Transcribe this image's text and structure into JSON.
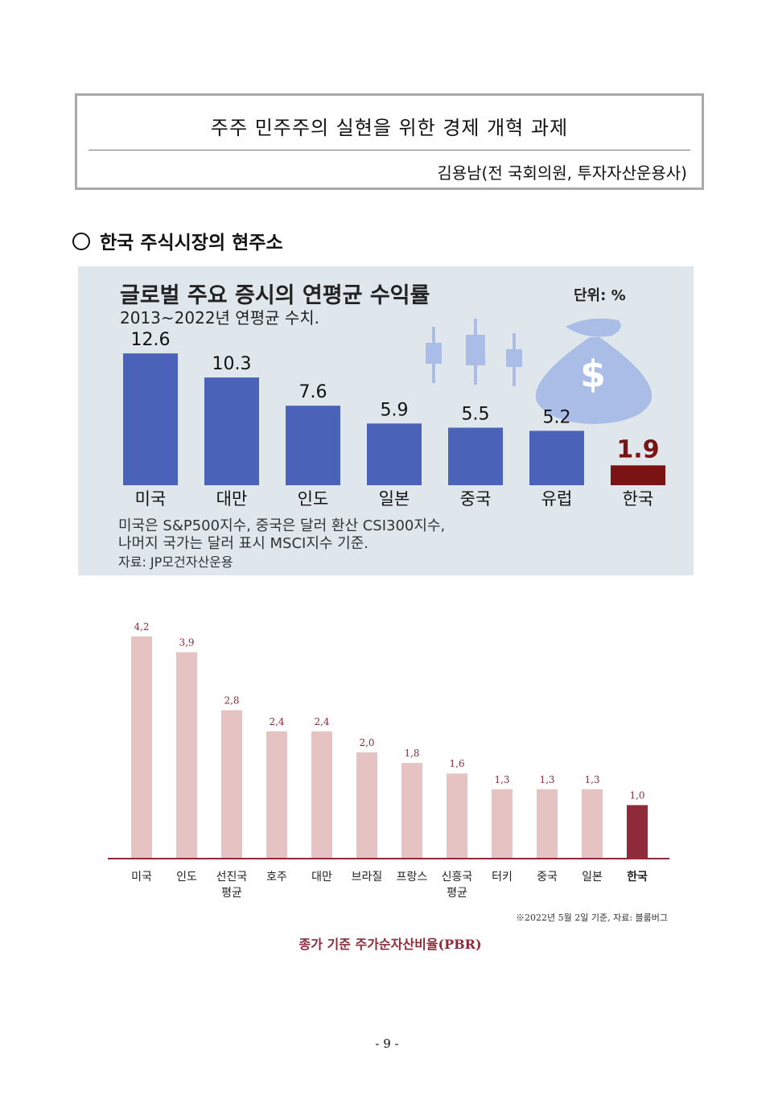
{
  "header": {
    "title": "주주 민주주의 실현을 위한 경제 개혁 과제",
    "author": "김용남(전 국회의원, 투자자산운용사)"
  },
  "section": {
    "title": "한국 주식시장의 현주소"
  },
  "chart1": {
    "title": "글로벌 주요 증시의 연평균 수익률",
    "unit": "단위: %",
    "subtitle": "2013~2022년 연평균 수치.",
    "note1": "미국은 S&P500지수, 중국은 달러 환산 CSI300지수,",
    "note2": "나머지 국가는 달러 표시 MSCI지수 기준.",
    "source": "자료: JP모건자산운용",
    "icons": [
      "candlestick-icon",
      "money-bag-icon"
    ]
  },
  "chart2": {
    "note": "※2022년 5월 2일 기준, 자료: 블룸버그",
    "caption": "종가 기준 주가순자산비율(PBR)"
  },
  "chart_data": [
    {
      "type": "bar",
      "title": "글로벌 주요 증시의 연평균 수익률",
      "categories": [
        "미국",
        "대만",
        "인도",
        "일본",
        "중국",
        "유럽",
        "한국"
      ],
      "values": [
        12.6,
        10.3,
        7.6,
        5.9,
        5.5,
        5.2,
        1.9
      ],
      "labels": [
        "12.6",
        "10.3",
        "7.6",
        "5.9",
        "5.5",
        "5.2",
        "1.9"
      ],
      "colors": [
        "#4a63b9",
        "#4a63b9",
        "#4a63b9",
        "#4a63b9",
        "#4a63b9",
        "#4a63b9",
        "#7a1414"
      ],
      "ylim": [
        0,
        14
      ]
    },
    {
      "type": "bar",
      "title": "종가 기준 주가순자산비율(PBR)",
      "categories": [
        "미국",
        "인도",
        "선진국 평균",
        "호주",
        "대만",
        "브라질",
        "프랑스",
        "신흥국 평균",
        "터키",
        "중국",
        "일본",
        "한국"
      ],
      "category_lines": [
        [
          "미국"
        ],
        [
          "인도"
        ],
        [
          "선진국",
          "평균"
        ],
        [
          "호주"
        ],
        [
          "대만"
        ],
        [
          "브라질"
        ],
        [
          "프랑스"
        ],
        [
          "신흥국",
          "평균"
        ],
        [
          "터키"
        ],
        [
          "중국"
        ],
        [
          "일본"
        ],
        [
          "한국"
        ]
      ],
      "values": [
        4.2,
        3.9,
        2.8,
        2.4,
        2.4,
        2.0,
        1.8,
        1.6,
        1.3,
        1.3,
        1.3,
        1.0
      ],
      "labels": [
        "4,2",
        "3,9",
        "2,8",
        "2,4",
        "2,4",
        "2,0",
        "1,8",
        "1,6",
        "1,3",
        "1,3",
        "1,3",
        "1,0"
      ],
      "colors": [
        "#e6c3c3",
        "#e6c3c3",
        "#e6c3c3",
        "#e6c3c3",
        "#e6c3c3",
        "#e6c3c3",
        "#e6c3c3",
        "#e6c3c3",
        "#e6c3c3",
        "#e6c3c3",
        "#e6c3c3",
        "#8f2a3a"
      ],
      "ylim": [
        0,
        4.5
      ]
    }
  ],
  "footer": {
    "page": "- 9 -"
  }
}
